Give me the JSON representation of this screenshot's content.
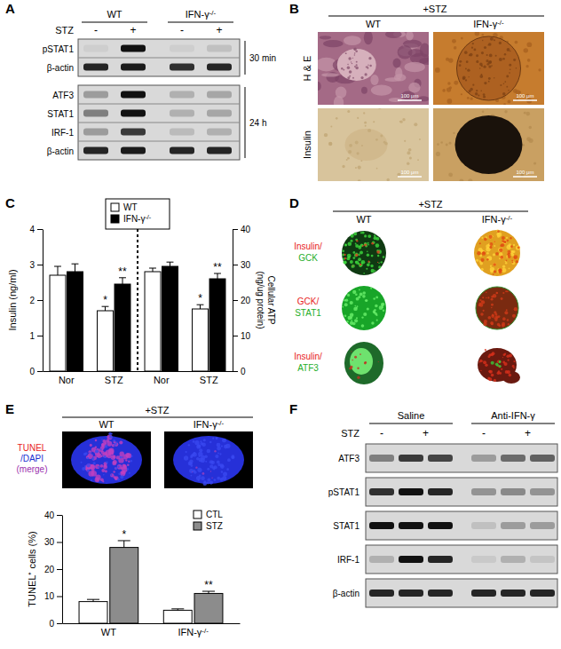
{
  "chart_data": [
    {
      "type": "bar",
      "categories": [
        "Nor",
        "STZ",
        "Nor",
        "STZ"
      ],
      "y_label": "Insulin (ng/ml)",
      "y2_label": [
        "Cellular ATP",
        "(ng/ug protein)"
      ],
      "ylim": [
        0,
        4
      ],
      "yticks": [
        0,
        1,
        2,
        3,
        4
      ],
      "y2lim": [
        0,
        40
      ],
      "y2ticks": [
        0,
        10,
        20,
        30,
        40
      ],
      "legend": "top",
      "series": [
        {
          "name": "WT",
          "color": "#ffffff",
          "values": [
            2.7,
            1.7,
            null,
            null
          ],
          "errors": [
            0.25,
            0.12,
            null,
            null
          ],
          "annotations": [
            null,
            "*",
            null,
            null
          ]
        },
        {
          "name": "IFN-γ-/-",
          "color": "#000000",
          "values": [
            2.8,
            2.45,
            null,
            null
          ],
          "errors": [
            0.22,
            0.18,
            null,
            null
          ],
          "annotations": [
            null,
            "**",
            null,
            null
          ]
        },
        {
          "color": "#ffffff",
          "axis": "y2",
          "values": [
            null,
            null,
            28,
            17.5
          ],
          "errors": [
            null,
            null,
            1.0,
            1.2
          ],
          "annotations": [
            null,
            null,
            null,
            "*"
          ]
        },
        {
          "color": "#000000",
          "axis": "y2",
          "values": [
            null,
            null,
            29.5,
            26
          ],
          "errors": [
            null,
            null,
            1.2,
            1.5
          ],
          "annotations": [
            null,
            null,
            null,
            "**"
          ]
        }
      ]
    },
    {
      "type": "bar",
      "categories": [
        "WT",
        "IFN-γ-/-"
      ],
      "y_label": "TUNEL⁺ cells (%)",
      "ylim": [
        0,
        40
      ],
      "yticks": [
        0,
        10,
        20,
        30,
        40
      ],
      "legend": "top-right",
      "series": [
        {
          "name": "CTL",
          "color": "#ffffff",
          "values": [
            8,
            4.8
          ],
          "errors": [
            0.8,
            0.5
          ],
          "annotations": [
            null,
            null
          ]
        },
        {
          "name": "STZ",
          "color": "#8c8c8c",
          "values": [
            28,
            11
          ],
          "errors": [
            2.5,
            0.8
          ],
          "annotations": [
            "*",
            "**"
          ]
        }
      ]
    }
  ],
  "figure": {
    "panel_labels": [
      "A",
      "B",
      "C",
      "D",
      "E",
      "F"
    ],
    "panel_A": {
      "groups": [
        "WT",
        null,
        "IFN-γ-/-",
        null
      ],
      "treatment": "STZ",
      "signs": [
        "-",
        "+",
        "-",
        "+"
      ],
      "sections": [
        {
          "time": "30 min",
          "blots": [
            {
              "name": "pSTAT1",
              "bands": [
                0.05,
                1,
                0.05,
                0.12
              ]
            },
            {
              "name": "β-actin",
              "bands": [
                0.9,
                0.95,
                0.85,
                0.9
              ]
            }
          ]
        },
        {
          "time": "24 h",
          "blots": [
            {
              "name": "ATF3",
              "bands": [
                0.3,
                1,
                0.2,
                0.25
              ]
            },
            {
              "name": "STAT1",
              "bands": [
                0.45,
                1,
                0.2,
                0.25
              ]
            },
            {
              "name": "IRF-1",
              "bands": [
                0.3,
                0.8,
                0.15,
                0.2
              ]
            },
            {
              "name": "β-actin",
              "bands": [
                0.9,
                0.95,
                0.9,
                0.9
              ]
            }
          ]
        }
      ]
    },
    "panel_B": {
      "treatment": "+STZ",
      "columns": [
        "WT",
        "IFN-γ-/-"
      ],
      "rows": [
        "H & E",
        "Insulin"
      ],
      "scale_bar": "100 μm"
    },
    "panel_D": {
      "treatment": "+STZ",
      "columns": [
        "WT",
        "IFN-γ-/-"
      ],
      "rows": [
        [
          {
            "text": "Insulin/",
            "color": "#e8231d"
          },
          {
            "text": "GCK",
            "color": "#1fae2a"
          }
        ],
        [
          {
            "text": "GCK/",
            "color": "#e8231d"
          },
          {
            "text": "STAT1",
            "color": "#1fae2a"
          }
        ],
        [
          {
            "text": "Insulin/",
            "color": "#e8231d"
          },
          {
            "text": "ATF3",
            "color": "#1fae2a"
          }
        ]
      ]
    },
    "panel_E": {
      "treatment": "+STZ",
      "columns": [
        "WT",
        "IFN-γ-/-"
      ],
      "stain": [
        {
          "text": "TUNEL",
          "color": "#e8231d"
        },
        {
          "text": "/DAPI",
          "color": "#1a2fd0"
        },
        {
          "text": "(merge)",
          "color": "#9b2fae"
        }
      ]
    },
    "panel_F": {
      "groups": [
        "Saline",
        null,
        null,
        "Anti-IFN-γ",
        null,
        null
      ],
      "treatment": "STZ",
      "signs": [
        "-",
        "+",
        null,
        "-",
        "+",
        null
      ],
      "blots": [
        {
          "name": "ATF3",
          "bands": [
            0.45,
            0.8,
            0.75,
            0.3,
            0.55,
            0.6
          ]
        },
        {
          "name": "pSTAT1",
          "bands": [
            0.85,
            1,
            0.9,
            0.35,
            0.4,
            0.35
          ]
        },
        {
          "name": "STAT1",
          "bands": [
            1,
            1,
            1,
            0.12,
            0.3,
            0.3
          ]
        },
        {
          "name": "IRF-1",
          "bands": [
            0.2,
            1,
            0.9,
            0.08,
            0.2,
            0.1
          ]
        },
        {
          "name": "β-actin",
          "bands": [
            0.9,
            0.9,
            0.9,
            0.9,
            0.9,
            0.9
          ]
        }
      ]
    }
  }
}
